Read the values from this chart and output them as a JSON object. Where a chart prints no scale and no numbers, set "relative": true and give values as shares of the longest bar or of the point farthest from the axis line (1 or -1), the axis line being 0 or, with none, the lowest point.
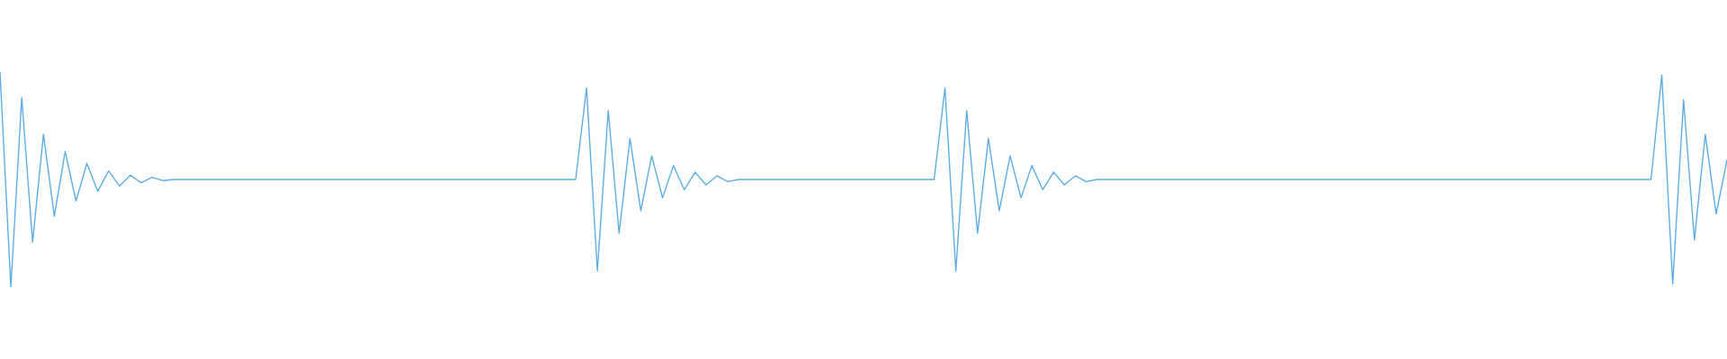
{
  "chart_data": {
    "type": "line",
    "relative": true,
    "color": "#5dade2",
    "categories": [
      null,
      null,
      null,
      null,
      null,
      null,
      null,
      null,
      null,
      null,
      null,
      null,
      null,
      null,
      null,
      null,
      null,
      null,
      null,
      null,
      null,
      null,
      null,
      null,
      null,
      null,
      null,
      null,
      null,
      null,
      null,
      null,
      null,
      null,
      null,
      null,
      null,
      null,
      null,
      null,
      null,
      null,
      null,
      null,
      null,
      null,
      null,
      null,
      null,
      null,
      null,
      null,
      null,
      null,
      null,
      null,
      null,
      null,
      null,
      null,
      null,
      null,
      null,
      null,
      null,
      null,
      null,
      null,
      null,
      null,
      null,
      null,
      null,
      null,
      null,
      null,
      null,
      null,
      null,
      null,
      null,
      null,
      null,
      null,
      null,
      null,
      null,
      null,
      null,
      null,
      null,
      null,
      null,
      null,
      null,
      null,
      null,
      null,
      null,
      null,
      null,
      null,
      null,
      null,
      null,
      null,
      null,
      null,
      null,
      null,
      null,
      null,
      null,
      null,
      null,
      null,
      null,
      null,
      null,
      null,
      null,
      null,
      null,
      null,
      null,
      null,
      null,
      null,
      null,
      null,
      null,
      null,
      null,
      null,
      null,
      null,
      null,
      null,
      null,
      null,
      null,
      null,
      null,
      null,
      null,
      null,
      null,
      null,
      null,
      null,
      null,
      null,
      null,
      null,
      null,
      null,
      null,
      null,
      null,
      null
    ],
    "values": [
      1.0,
      0.0,
      0.88,
      0.21,
      0.71,
      0.33,
      0.63,
      0.4,
      0.575,
      0.445,
      0.54,
      0.47,
      0.52,
      0.485,
      0.51,
      0.495,
      0.5,
      0.5,
      0.5,
      0.5,
      0.5,
      0.5,
      0.5,
      0.5,
      0.5,
      0.5,
      0.5,
      0.5,
      0.5,
      0.5,
      0.5,
      0.5,
      0.5,
      0.5,
      0.5,
      0.5,
      0.5,
      0.5,
      0.5,
      0.5,
      0.5,
      0.5,
      0.5,
      0.5,
      0.5,
      0.5,
      0.5,
      0.5,
      0.5,
      0.5,
      0.5,
      0.5,
      0.5,
      0.5,
      0.925,
      0.075,
      0.82,
      0.25,
      0.69,
      0.355,
      0.61,
      0.415,
      0.564,
      0.453,
      0.534,
      0.475,
      0.517,
      0.49,
      0.5,
      0.5,
      0.5,
      0.5,
      0.5,
      0.5,
      0.5,
      0.5,
      0.5,
      0.5,
      0.5,
      0.5,
      0.5,
      0.5,
      0.5,
      0.5,
      0.5,
      0.5,
      0.5,
      0.925,
      0.075,
      0.82,
      0.25,
      0.69,
      0.355,
      0.61,
      0.415,
      0.564,
      0.453,
      0.534,
      0.475,
      0.517,
      0.49,
      0.5,
      0.5,
      0.5,
      0.5,
      0.5,
      0.5,
      0.5,
      0.5,
      0.5,
      0.5,
      0.5,
      0.5,
      0.5,
      0.5,
      0.5,
      0.5,
      0.5,
      0.5,
      0.5,
      0.5,
      0.5,
      0.5,
      0.5,
      0.5,
      0.5,
      0.5,
      0.5,
      0.5,
      0.5,
      0.5,
      0.5,
      0.5,
      0.5,
      0.5,
      0.5,
      0.5,
      0.5,
      0.5,
      0.5,
      0.5,
      0.5,
      0.5,
      0.5,
      0.5,
      0.5,
      0.5,
      0.5,
      0.5,
      0.5,
      0.5,
      0.5,
      0.5,
      0.985,
      0.015,
      0.87,
      0.22,
      0.71,
      0.34,
      0.59
    ]
  }
}
